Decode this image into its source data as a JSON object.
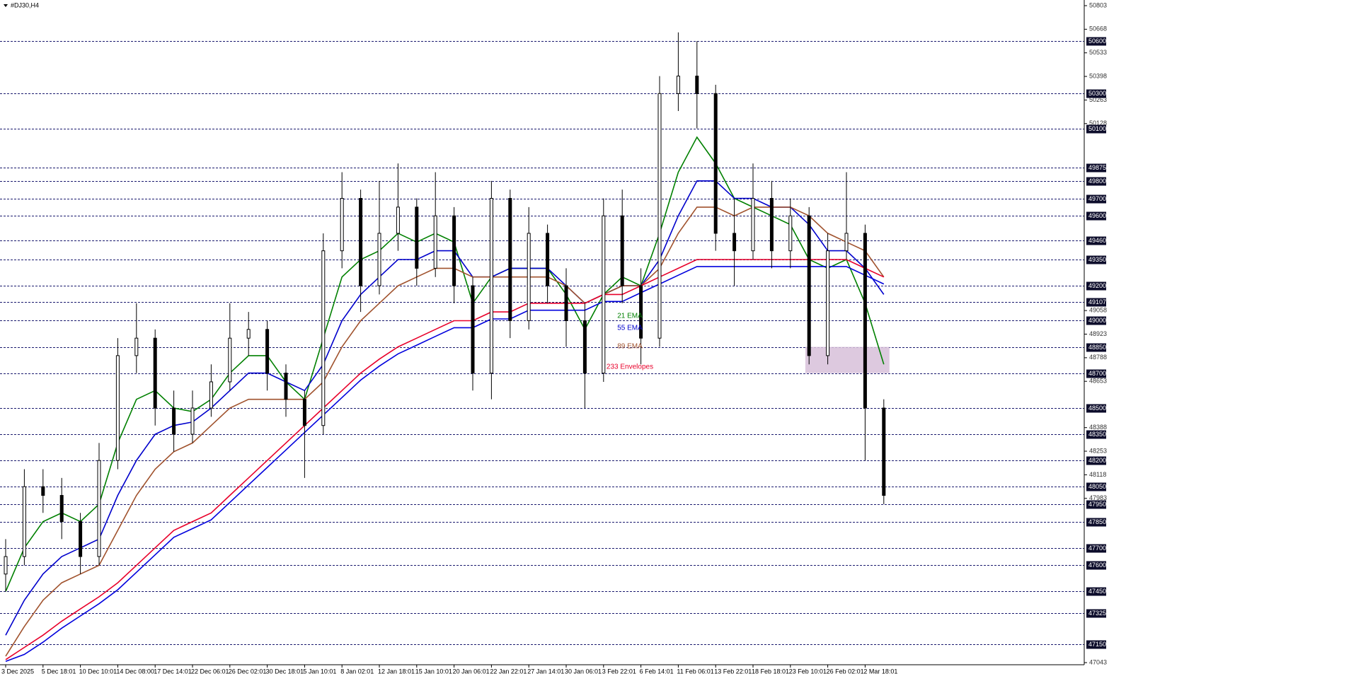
{
  "chart_data": {
    "type": "candlestick",
    "title": "#DJ30,H4",
    "categories": [
      "3 Dec 2025",
      null,
      "5 Dec 18:01",
      null,
      "10 Dec 10:01",
      null,
      "14 Dec 08:00",
      null,
      "17 Dec 14:01",
      null,
      "22 Dec 06:01",
      null,
      "26 Dec 02:01",
      null,
      "30 Dec 18:01",
      null,
      "5 Jan 10:01",
      null,
      "8 Jan 02:01",
      null,
      "12 Jan 18:01",
      null,
      "15 Jan 10:01",
      null,
      "20 Jan 06:01",
      null,
      "22 Jan 22:01",
      null,
      "27 Jan 14:01",
      null,
      "30 Jan 06:01",
      null,
      "3 Feb 22:01",
      null,
      "6 Feb 14:01",
      null,
      "11 Feb 06:01",
      null,
      "13 Feb 22:01",
      null,
      "18 Feb 18:01",
      null,
      "23 Feb 10:01",
      null,
      "26 Feb 02:01",
      null,
      "2 Mar 18:01",
      null
    ],
    "open": [
      47550,
      47650,
      48050,
      48000,
      47850,
      47650,
      48200,
      48800,
      48900,
      48500,
      48350,
      48500,
      48650,
      48900,
      48950,
      48700,
      48550,
      48400,
      49400,
      49700,
      49200,
      49500,
      49650,
      49300,
      49600,
      49200,
      48700,
      49700,
      49000,
      49500,
      49200,
      49000,
      48700,
      49600,
      49200,
      48900,
      50300,
      50400,
      50300,
      49500,
      49400,
      49700,
      49400,
      49600,
      48800,
      49400,
      49500,
      48500
    ],
    "high": [
      47750,
      48150,
      48150,
      48100,
      47900,
      48300,
      48900,
      49100,
      48950,
      48600,
      48600,
      48750,
      49100,
      49050,
      49000,
      48750,
      48600,
      49500,
      49850,
      49750,
      49800,
      49900,
      49700,
      49850,
      49650,
      49250,
      49800,
      49750,
      49650,
      49550,
      49300,
      49100,
      49700,
      49750,
      49300,
      50400,
      50650,
      50600,
      50350,
      49700,
      49900,
      49800,
      49700,
      49650,
      49500,
      49850,
      49550,
      48550
    ],
    "low": [
      47450,
      47600,
      47900,
      47750,
      47550,
      47600,
      48150,
      48700,
      48400,
      48250,
      48300,
      48450,
      48600,
      48800,
      48600,
      48450,
      48100,
      48350,
      49300,
      49050,
      49150,
      49400,
      49200,
      49250,
      49100,
      48600,
      48550,
      48900,
      48950,
      49100,
      48850,
      48500,
      48650,
      49100,
      48750,
      48850,
      50200,
      50100,
      49400,
      49200,
      49350,
      49300,
      49300,
      48750,
      48750,
      49350,
      48200,
      47950
    ],
    "close": [
      47650,
      48050,
      48000,
      47850,
      47650,
      48200,
      48800,
      48900,
      48500,
      48350,
      48500,
      48650,
      48900,
      48950,
      48700,
      48550,
      48400,
      49400,
      49700,
      49200,
      49500,
      49650,
      49300,
      49600,
      49200,
      48700,
      49700,
      49000,
      49500,
      49200,
      49000,
      48700,
      49600,
      49200,
      48900,
      50300,
      50400,
      50300,
      49500,
      49400,
      49700,
      49400,
      49600,
      48800,
      49400,
      49500,
      48500,
      48000
    ],
    "series": [
      {
        "name": "21 EMA",
        "color": "#008000",
        "values": [
          47450,
          47700,
          47850,
          47900,
          47850,
          47950,
          48300,
          48550,
          48600,
          48500,
          48480,
          48550,
          48700,
          48800,
          48800,
          48650,
          48550,
          48900,
          49250,
          49350,
          49400,
          49500,
          49450,
          49500,
          49450,
          49100,
          49250,
          49300,
          49300,
          49300,
          49150,
          48950,
          49150,
          49250,
          49200,
          49500,
          49850,
          50050,
          49900,
          49700,
          49650,
          49600,
          49550,
          49350,
          49300,
          49350,
          49100,
          48750
        ]
      },
      {
        "name": "55 EMA",
        "color": "#0000cc",
        "values": [
          47200,
          47400,
          47550,
          47650,
          47700,
          47750,
          48000,
          48200,
          48350,
          48400,
          48420,
          48500,
          48600,
          48700,
          48700,
          48650,
          48600,
          48750,
          49000,
          49150,
          49250,
          49350,
          49350,
          49400,
          49400,
          49250,
          49250,
          49300,
          49300,
          49300,
          49200,
          49100,
          49150,
          49200,
          49200,
          49350,
          49600,
          49800,
          49800,
          49700,
          49700,
          49650,
          49650,
          49550,
          49400,
          49400,
          49300,
          49150
        ]
      },
      {
        "name": "89 EMA",
        "color": "#a0522d",
        "values": [
          47080,
          47250,
          47400,
          47500,
          47550,
          47600,
          47800,
          48000,
          48150,
          48250,
          48300,
          48400,
          48500,
          48550,
          48550,
          48550,
          48550,
          48650,
          48850,
          49000,
          49100,
          49200,
          49250,
          49300,
          49300,
          49250,
          49250,
          49250,
          49250,
          49250,
          49200,
          49100,
          49150,
          49200,
          49200,
          49300,
          49500,
          49650,
          49650,
          49600,
          49650,
          49650,
          49650,
          49600,
          49500,
          49450,
          49400,
          49250
        ]
      },
      {
        "name": "233 Envelopes",
        "color": "#e8002a",
        "lower_color": "#0000dd",
        "values": [
          47060,
          47130,
          47200,
          47280,
          47350,
          47420,
          47500,
          47600,
          47700,
          47800,
          47850,
          47900,
          48000,
          48100,
          48200,
          48300,
          48400,
          48500,
          48600,
          48700,
          48780,
          48850,
          48900,
          48950,
          49000,
          49000,
          49050,
          49050,
          49100,
          49100,
          49100,
          49100,
          49150,
          49150,
          49200,
          49250,
          49300,
          49350,
          49350,
          49350,
          49350,
          49350,
          49350,
          49350,
          49350,
          49350,
          49300,
          49250
        ],
        "lower": [
          47050,
          47090,
          47160,
          47240,
          47310,
          47380,
          47460,
          47560,
          47660,
          47760,
          47810,
          47860,
          47960,
          48060,
          48160,
          48260,
          48360,
          48460,
          48560,
          48660,
          48740,
          48810,
          48860,
          48910,
          48960,
          48960,
          49010,
          49010,
          49060,
          49060,
          49060,
          49060,
          49110,
          49110,
          49160,
          49210,
          49260,
          49310,
          49310,
          49310,
          49310,
          49310,
          49310,
          49310,
          49310,
          49310,
          49260,
          49210
        ]
      }
    ],
    "ylim": [
      47043,
      50803
    ],
    "yticks": [
      50803,
      50668,
      50533,
      50398,
      50263,
      50128,
      49058,
      48923,
      48788,
      48653,
      48388,
      48253,
      48118,
      47983,
      47043
    ],
    "levels": [
      50600,
      50300,
      50100,
      49875,
      49800,
      49700,
      49600,
      49460,
      49350,
      49200,
      49107,
      49000,
      48850,
      48700,
      48500,
      48350,
      48200,
      48050,
      47950,
      47850,
      47700,
      47600,
      47450,
      47325,
      47150
    ],
    "zone": {
      "low": 48700,
      "high": 48850,
      "color": "#d7bfd9"
    }
  }
}
